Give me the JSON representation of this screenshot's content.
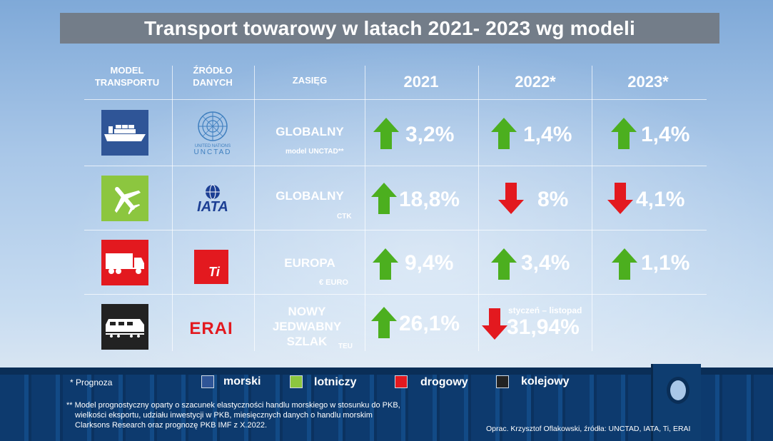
{
  "title": "Transport towarowy w latach 2021- 2023 wg modeli",
  "headers": {
    "model_l1": "MODEL",
    "model_l2": "TRANSPORTU",
    "source_l1": "ŹRÓDŁO",
    "source_l2": "DANYCH",
    "range": "ZASIĘG",
    "y2021": "2021",
    "y2022": "2022*",
    "y2023": "2023*"
  },
  "rows": [
    {
      "mode_icon": "ship-icon",
      "mode_color": "#2f5597",
      "source": "UNCTAD",
      "source_caption_l1": "UNITED NATIONS",
      "source_caption_l2": "UNCTAD",
      "range": "GLOBALNY",
      "range_sub": "model UNCTAD**",
      "values": [
        {
          "dir": "up",
          "text": "3,2%"
        },
        {
          "dir": "up",
          "text": "1,4%"
        },
        {
          "dir": "up",
          "text": "1,4%"
        }
      ]
    },
    {
      "mode_icon": "airplane-icon",
      "mode_color": "#8cc63f",
      "source": "IATA",
      "range": "GLOBALNY",
      "range_sub": "CTK",
      "values": [
        {
          "dir": "up",
          "text": "18,8%"
        },
        {
          "dir": "down",
          "text": "8%"
        },
        {
          "dir": "down",
          "text": "4,1%"
        }
      ]
    },
    {
      "mode_icon": "truck-icon",
      "mode_color": "#e3191f",
      "source": "Ti",
      "range": "EUROPA",
      "range_sub": "€ EURO",
      "values": [
        {
          "dir": "up",
          "text": "9,4%"
        },
        {
          "dir": "up",
          "text": "3,4%"
        },
        {
          "dir": "up",
          "text": "1,1%"
        }
      ]
    },
    {
      "mode_icon": "train-icon",
      "mode_color": "#222222",
      "source": "ERAI",
      "range_l1": "NOWY",
      "range_l2": "JEDWABNY",
      "range_l3": "SZLAK",
      "range_sub": "TEU",
      "values": [
        {
          "dir": "up",
          "text": "26,1%"
        },
        {
          "dir": "down",
          "text": "31,94%",
          "caption": "styczeń – listopad"
        }
      ]
    }
  ],
  "legend": {
    "footnote": "* Prognoza",
    "items": [
      {
        "label": "morski",
        "color": "#2f5597"
      },
      {
        "label": "lotniczy",
        "color": "#8cc63f"
      },
      {
        "label": "drogowy",
        "color": "#e3191f"
      },
      {
        "label": "kolejowy",
        "color": "#222222"
      }
    ]
  },
  "notes": {
    "line1": "** Model prognostyczny oparty o szacunek elastyczności handlu morskiego w stosunku do PKB,",
    "line2": "wielkości eksportu, udziału inwestycji w PKB, miesięcznych danych o handlu  morskim",
    "line3": "Clarksons Research oraz prognozę PKB IMF z X.2022.",
    "credit": "Oprac. Krzysztof Oflakowski, źródła: UNCTAD, IATA, Ti, ERAI"
  },
  "colors": {
    "up_arrow": "#4caf1f",
    "down_arrow": "#e3191f"
  }
}
